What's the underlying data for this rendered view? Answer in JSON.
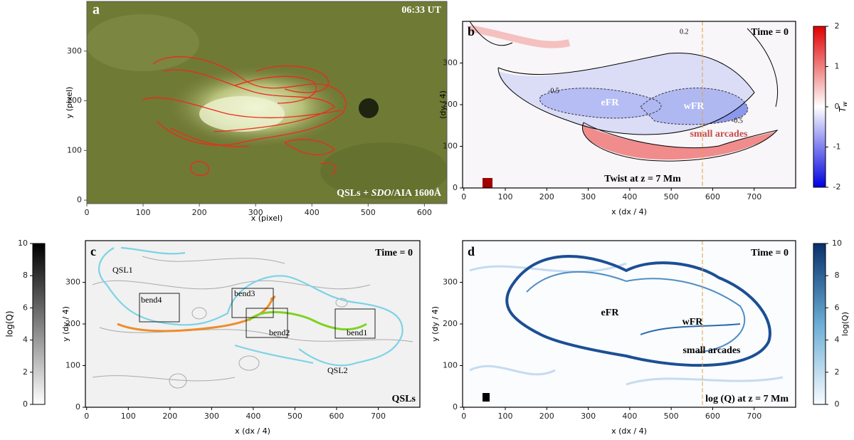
{
  "panels": [
    {
      "label": "a",
      "annotations": [
        "06:33 UT",
        "QSLs + ",
        "SDO",
        "/AIA 1600Å"
      ],
      "x_label": "x (pixel)",
      "y_label": "y (pixel)",
      "xlim": [
        0,
        640
      ],
      "ylim": [
        -7,
        400
      ],
      "xticks": [
        0,
        100,
        200,
        300,
        400,
        500,
        600
      ],
      "yticks": [
        0,
        100,
        200,
        300
      ]
    },
    {
      "label": "b",
      "annotations": [
        "Time = 0",
        "eFR",
        "wFR",
        "small arcades",
        "Twist at z = 7 Mm",
        "0.2",
        "-0.5",
        "-0.5"
      ],
      "x_label": "x (dx / 4)",
      "y_label": "(dy / 4)",
      "xlim": [
        -3,
        800
      ],
      "ylim": [
        0,
        400
      ],
      "xticks": [
        0,
        100,
        200,
        300,
        400,
        500,
        600,
        700
      ],
      "yticks": [
        0,
        100,
        200,
        300
      ],
      "colorbar": {
        "label": "T",
        "label_subscript": "w",
        "lim": [
          -2,
          2
        ],
        "ticks": [
          2,
          1,
          0,
          -1,
          -2
        ]
      }
    },
    {
      "label": "c",
      "annotations": [
        "Time = 0",
        "QSL1",
        "bend4",
        "bend3",
        "bend2",
        "bend1",
        "QSL2",
        "QSLs"
      ],
      "x_label": "x (dx / 4)",
      "y_label": "y (dy / 4)",
      "xlim": [
        -3,
        800
      ],
      "ylim": [
        0,
        400
      ],
      "xticks": [
        0,
        100,
        200,
        300,
        400,
        500,
        600,
        700
      ],
      "yticks": [
        0,
        100,
        200,
        300
      ],
      "colorbar": {
        "label": "log(Q)",
        "lim": [
          0,
          10
        ],
        "ticks": [
          0,
          2,
          4,
          6,
          8,
          10
        ]
      }
    },
    {
      "label": "d",
      "annotations": [
        "Time = 0",
        "eFR",
        "wFR",
        "small arcades",
        "log (Q) at z = 7 Mm"
      ],
      "x_label": "x (dx / 4)",
      "y_label": "y (dy / 4)",
      "xlim": [
        -3,
        800
      ],
      "ylim": [
        0,
        400
      ],
      "xticks": [
        0,
        100,
        200,
        300,
        400,
        500,
        600,
        700
      ],
      "yticks": [
        0,
        100,
        200,
        300
      ],
      "colorbar": {
        "label": "log(Q)",
        "lim": [
          0,
          10
        ],
        "ticks": [
          0,
          2,
          4,
          6,
          8,
          10
        ]
      }
    }
  ]
}
